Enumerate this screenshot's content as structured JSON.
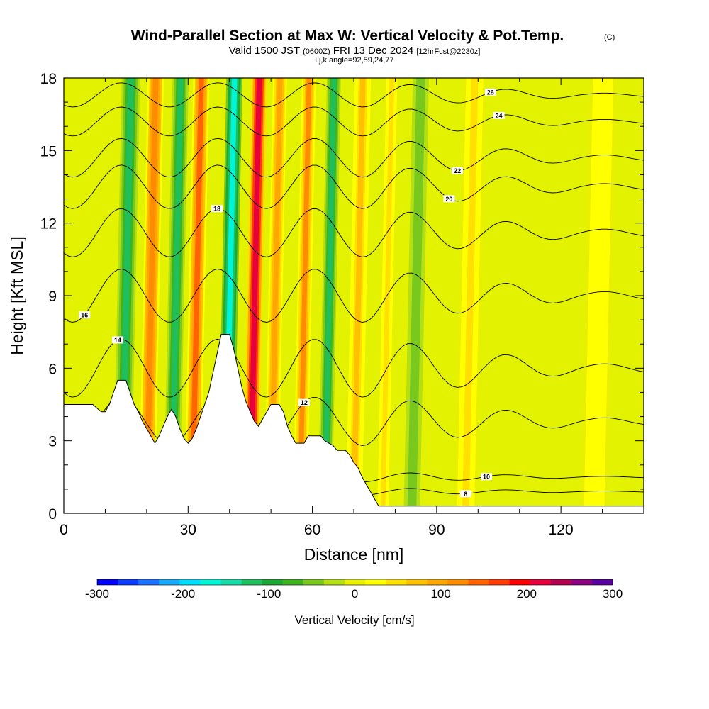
{
  "header": {
    "title": "Wind-Parallel Section at Max W: Vertical Velocity & Pot.Temp.",
    "copyright": "(C)",
    "valid_prefix": "Valid 1500 JST",
    "valid_utc": "(0600Z)",
    "valid_date": "FRI 13 Dec 2024",
    "forecast": "[12hrFcst@2230z]",
    "indices": "i,j,k,angle=92,59,24,77"
  },
  "chart_data": {
    "type": "heatmap",
    "xlabel": "Distance [nm]",
    "ylabel": "Height [Kft MSL]",
    "xlim": [
      0,
      140
    ],
    "ylim": [
      0,
      18
    ],
    "xticks": [
      0,
      30,
      60,
      90,
      120
    ],
    "yticks": [
      0,
      3,
      6,
      9,
      12,
      15,
      18
    ],
    "grid": false,
    "terrain": [
      [
        0,
        4.5
      ],
      [
        7,
        4.5
      ],
      [
        9,
        4.2
      ],
      [
        10,
        4.2
      ],
      [
        11,
        4.5
      ],
      [
        12,
        5.0
      ],
      [
        13,
        5.5
      ],
      [
        15,
        5.5
      ],
      [
        16,
        5.0
      ],
      [
        17,
        4.5
      ],
      [
        18,
        4.2
      ],
      [
        19,
        3.8
      ],
      [
        20,
        3.5
      ],
      [
        21,
        3.2
      ],
      [
        22,
        2.9
      ],
      [
        23,
        3.2
      ],
      [
        24,
        3.6
      ],
      [
        25,
        4.0
      ],
      [
        26,
        4.3
      ],
      [
        27,
        4.0
      ],
      [
        28,
        3.5
      ],
      [
        29,
        3.1
      ],
      [
        30,
        2.9
      ],
      [
        31,
        3.1
      ],
      [
        32,
        3.5
      ],
      [
        33,
        4.0
      ],
      [
        34,
        4.5
      ],
      [
        35,
        5.0
      ],
      [
        36,
        5.8
      ],
      [
        37,
        6.6
      ],
      [
        38,
        7.4
      ],
      [
        40,
        7.4
      ],
      [
        41,
        6.8
      ],
      [
        42,
        6.0
      ],
      [
        43,
        5.2
      ],
      [
        44,
        4.6
      ],
      [
        45,
        4.2
      ],
      [
        46,
        3.8
      ],
      [
        47,
        3.6
      ],
      [
        48,
        3.9
      ],
      [
        49,
        4.2
      ],
      [
        50,
        4.5
      ],
      [
        52,
        4.5
      ],
      [
        53,
        4.2
      ],
      [
        54,
        3.6
      ],
      [
        55,
        3.2
      ],
      [
        56,
        2.9
      ],
      [
        58,
        2.9
      ],
      [
        59,
        3.2
      ],
      [
        60,
        3.2
      ],
      [
        62,
        3.2
      ],
      [
        63,
        3.0
      ],
      [
        64,
        2.9
      ],
      [
        65,
        2.8
      ],
      [
        66,
        2.6
      ],
      [
        68,
        2.6
      ],
      [
        69,
        2.4
      ],
      [
        70,
        2.1
      ],
      [
        71,
        1.9
      ],
      [
        72,
        1.5
      ],
      [
        73,
        1.2
      ],
      [
        74,
        0.9
      ],
      [
        75,
        0.6
      ],
      [
        76,
        0.3
      ],
      [
        77,
        0.3
      ],
      [
        140,
        0.3
      ]
    ],
    "velocity_bands": [
      {
        "x": 14,
        "w": 4,
        "amp": -110
      },
      {
        "x": 20,
        "w": 3.5,
        "amp": 130
      },
      {
        "x": 26,
        "w": 3.5,
        "amp": -110
      },
      {
        "x": 31,
        "w": 3.5,
        "amp": 140
      },
      {
        "x": 39,
        "w": 3.5,
        "amp": -170
      },
      {
        "x": 45,
        "w": 3.5,
        "amp": 210
      },
      {
        "x": 50,
        "w": 3,
        "amp": 90
      },
      {
        "x": 57,
        "w": 3,
        "amp": 110
      },
      {
        "x": 63,
        "w": 3,
        "amp": -110
      },
      {
        "x": 70,
        "w": 3.5,
        "amp": 70
      },
      {
        "x": 77,
        "w": 3,
        "amp": 40
      },
      {
        "x": 84,
        "w": 3.5,
        "amp": -60
      },
      {
        "x": 97,
        "w": 5,
        "amp": 40
      },
      {
        "x": 128,
        "w": 6,
        "amp": 30
      }
    ],
    "contours": [
      {
        "theta": 8,
        "base": 0.9,
        "amp": 0.15,
        "label": "8",
        "lx": 97
      },
      {
        "theta": 10,
        "base": 1.5,
        "amp": 0.2,
        "label": "10",
        "lx": 102
      },
      {
        "theta": 12,
        "base": 3.8,
        "amp": 1.0,
        "label": "12",
        "lx": 58
      },
      {
        "theta": 14,
        "base": 6.0,
        "amp": 1.2,
        "label": "14",
        "lx": 13
      },
      {
        "theta": 16,
        "base": 9.0,
        "amp": 1.1,
        "label": "16",
        "lx": 5
      },
      {
        "theta": 18,
        "base": 11.6,
        "amp": 1.0,
        "label": "18",
        "lx": 37
      },
      {
        "theta": 20,
        "base": 13.5,
        "amp": 0.9,
        "label": "20",
        "lx": 93
      },
      {
        "theta": 22,
        "base": 14.7,
        "amp": 0.8,
        "label": "22",
        "lx": 95
      },
      {
        "theta": 24,
        "base": 16.2,
        "amp": 0.6,
        "label": "24",
        "lx": 105
      },
      {
        "theta": 26,
        "base": 17.3,
        "amp": 0.5,
        "label": "26",
        "lx": 103
      }
    ],
    "colorbar": {
      "label": "Vertical Velocity [cm/s]",
      "min": -300,
      "max": 300,
      "ticks": [
        "-300",
        "-200",
        "-100",
        "0",
        "100",
        "200",
        "300"
      ],
      "colors": [
        "#0000ff",
        "#0a3cff",
        "#1a73ff",
        "#18a8ff",
        "#00dcff",
        "#00f5d7",
        "#18d9a8",
        "#1fbf5d",
        "#1ca932",
        "#3cb41e",
        "#79c81e",
        "#b4df14",
        "#e8f000",
        "#ffff00",
        "#ffe000",
        "#ffc000",
        "#ffa600",
        "#ff8c00",
        "#ff6400",
        "#ff3c00",
        "#ff0000",
        "#e6003c",
        "#b40050",
        "#8c0082",
        "#5a00a0"
      ]
    }
  }
}
